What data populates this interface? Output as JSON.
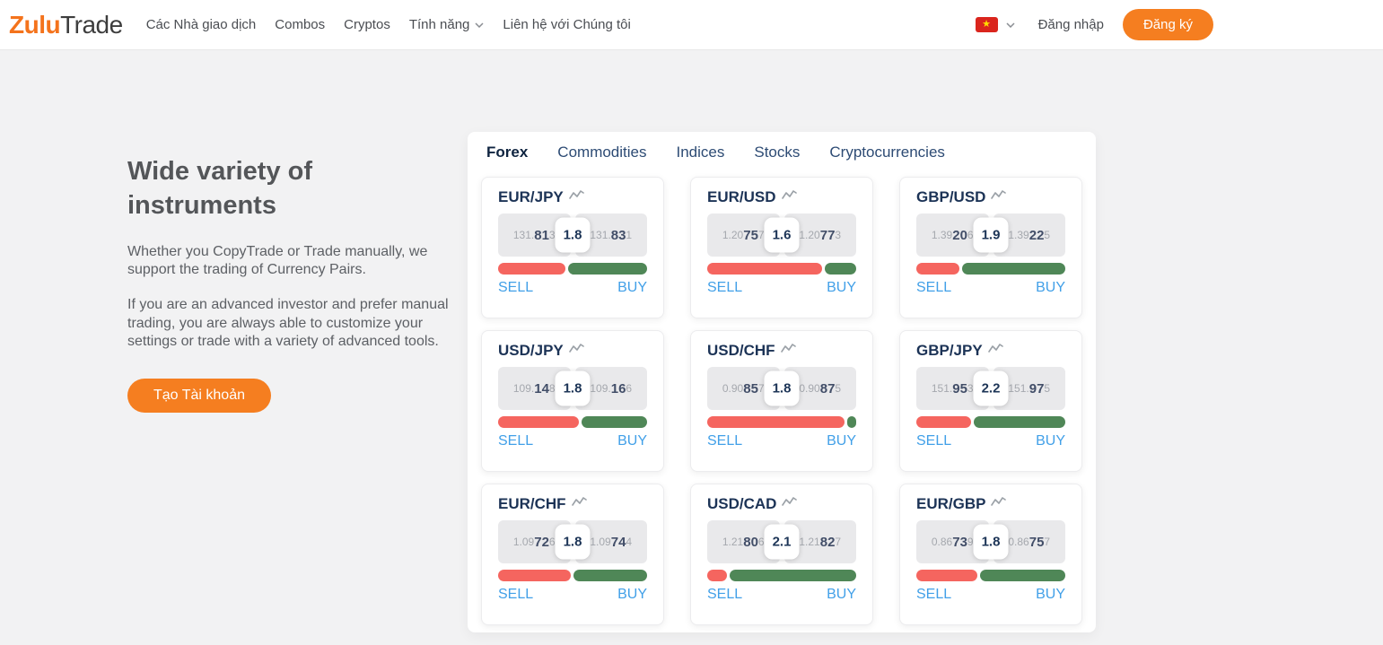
{
  "header": {
    "logo": {
      "part1": "Zulu",
      "part2": "Trade"
    },
    "nav": [
      {
        "label": "Các Nhà giao dịch"
      },
      {
        "label": "Combos"
      },
      {
        "label": "Cryptos"
      },
      {
        "label": "Tính năng"
      },
      {
        "label": "Liên hệ với Chúng tôi"
      }
    ],
    "language": {
      "flag": "vietnam",
      "flag_star": "★"
    },
    "login_label": "Đăng nhập",
    "signup_label": "Đăng ký"
  },
  "hero": {
    "title_line1": "Wide variety of",
    "title_line2": "instruments",
    "paragraph1": "Whether you CopyTrade or Trade manually, we support the trading of Currency Pairs.",
    "paragraph2": "If you are an advanced investor and prefer manual trading, you are always able to customize your settings or trade with a variety of advanced tools.",
    "cta_label": "Tạo Tài khoản"
  },
  "instruments": {
    "tabs": [
      {
        "label": "Forex",
        "active": true
      },
      {
        "label": "Commodities",
        "active": false
      },
      {
        "label": "Indices",
        "active": false
      },
      {
        "label": "Stocks",
        "active": false
      },
      {
        "label": "Cryptocurrencies",
        "active": false
      }
    ],
    "sell_label": "SELL",
    "buy_label": "BUY",
    "pairs": [
      {
        "name": "EUR/JPY",
        "sell_prefix": "131.",
        "sell_main": "81",
        "sell_suffix": "3",
        "spread": "1.8",
        "buy_prefix": "131.",
        "buy_main": "83",
        "buy_suffix": "1",
        "sell_pct": 45
      },
      {
        "name": "EUR/USD",
        "sell_prefix": "1.20",
        "sell_main": "75",
        "sell_suffix": "7",
        "spread": "1.6",
        "buy_prefix": "1.20",
        "buy_main": "77",
        "buy_suffix": "3",
        "sell_pct": 77
      },
      {
        "name": "GBP/USD",
        "sell_prefix": "1.39",
        "sell_main": "20",
        "sell_suffix": "6",
        "spread": "1.9",
        "buy_prefix": "1.39",
        "buy_main": "22",
        "buy_suffix": "5",
        "sell_pct": 29
      },
      {
        "name": "USD/JPY",
        "sell_prefix": "109.",
        "sell_main": "14",
        "sell_suffix": "8",
        "spread": "1.8",
        "buy_prefix": "109.",
        "buy_main": "16",
        "buy_suffix": "6",
        "sell_pct": 54
      },
      {
        "name": "USD/CHF",
        "sell_prefix": "0.90",
        "sell_main": "85",
        "sell_suffix": "7",
        "spread": "1.8",
        "buy_prefix": "0.90",
        "buy_main": "87",
        "buy_suffix": "5",
        "sell_pct": 92
      },
      {
        "name": "GBP/JPY",
        "sell_prefix": "151.",
        "sell_main": "95",
        "sell_suffix": "3",
        "spread": "2.2",
        "buy_prefix": "151.",
        "buy_main": "97",
        "buy_suffix": "5",
        "sell_pct": 37
      },
      {
        "name": "EUR/CHF",
        "sell_prefix": "1.09",
        "sell_main": "72",
        "sell_suffix": "6",
        "spread": "1.8",
        "buy_prefix": "1.09",
        "buy_main": "74",
        "buy_suffix": "4",
        "sell_pct": 49
      },
      {
        "name": "USD/CAD",
        "sell_prefix": "1.21",
        "sell_main": "80",
        "sell_suffix": "6",
        "spread": "2.1",
        "buy_prefix": "1.21",
        "buy_main": "82",
        "buy_suffix": "7",
        "sell_pct": 13
      },
      {
        "name": "EUR/GBP",
        "sell_prefix": "0.86",
        "sell_main": "73",
        "sell_suffix": "9",
        "spread": "1.8",
        "buy_prefix": "0.86",
        "buy_main": "75",
        "buy_suffix": "7",
        "sell_pct": 41
      }
    ]
  },
  "colors": {
    "accent_orange": "#f57e20",
    "logo_orange": "#f4731c",
    "sell_red": "#f5655f",
    "buy_green": "#4f8757",
    "link_blue": "#42a0e8",
    "navy_text": "#1c3356",
    "page_bg": "#f2f2f3"
  }
}
